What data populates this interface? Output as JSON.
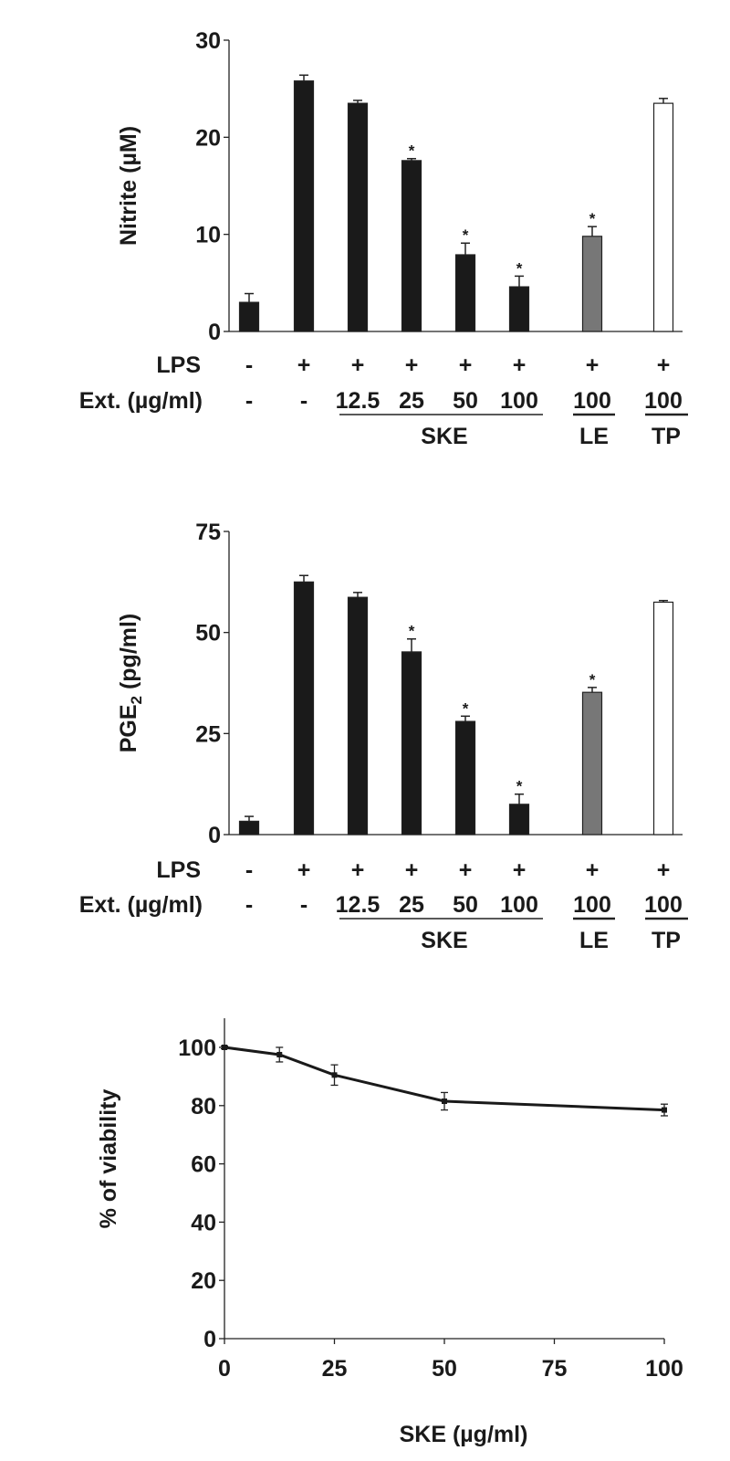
{
  "colors": {
    "black_bar": "#1a1a1a",
    "le_bar": "#777777",
    "tp_bar": "#ffffff",
    "axis": "#222222"
  },
  "row_labels": {
    "lps": "LPS",
    "ext": "Ext. (µg/ml)"
  },
  "groups": {
    "ske": "SKE",
    "le": "LE",
    "tp": "TP"
  },
  "chart_data": [
    {
      "type": "bar",
      "ylabel": "Nitrite (µM)",
      "ylim": [
        0,
        30
      ],
      "yticks": [
        "0",
        "10",
        "20",
        "30"
      ],
      "lps": [
        "-",
        "+",
        "+",
        "+",
        "+",
        "+",
        "+",
        "+"
      ],
      "ext": [
        "-",
        "-",
        "12.5",
        "25",
        "50",
        "100",
        "100",
        "100"
      ],
      "values": [
        3.0,
        25.8,
        23.5,
        17.6,
        7.9,
        4.6,
        9.8,
        23.5
      ],
      "errors": [
        0.9,
        0.6,
        0.3,
        0.2,
        1.2,
        1.1,
        1.0,
        0.5
      ],
      "significant": [
        false,
        false,
        false,
        true,
        true,
        true,
        true,
        false
      ],
      "fills": [
        "black",
        "black",
        "black",
        "black",
        "black",
        "black",
        "gray",
        "white"
      ],
      "marker": "*"
    },
    {
      "type": "bar",
      "ylabel": "PGE",
      "ylabel_sub": "2",
      "ylabel_unit": " (pg/ml)",
      "ylim": [
        0,
        75
      ],
      "yticks": [
        "0",
        "25",
        "50",
        "75"
      ],
      "lps": [
        "-",
        "+",
        "+",
        "+",
        "+",
        "+",
        "+",
        "+"
      ],
      "ext": [
        "-",
        "-",
        "12.5",
        "25",
        "50",
        "100",
        "100",
        "100"
      ],
      "values": [
        3.3,
        62.5,
        58.7,
        45.2,
        28.0,
        7.5,
        35.2,
        57.5
      ],
      "errors": [
        1.2,
        1.6,
        1.2,
        3.2,
        1.3,
        2.5,
        1.2,
        0.4
      ],
      "significant": [
        false,
        false,
        false,
        true,
        true,
        true,
        true,
        false
      ],
      "fills": [
        "black",
        "black",
        "black",
        "black",
        "black",
        "black",
        "gray",
        "white"
      ],
      "marker": "*"
    },
    {
      "type": "line",
      "ylabel": "% of viability",
      "xlabel": "SKE (µg/ml)",
      "ylim": [
        0,
        110
      ],
      "xlim": [
        0,
        100
      ],
      "yticks": [
        "0",
        "20",
        "40",
        "60",
        "80",
        "100"
      ],
      "xticks": [
        "0",
        "25",
        "50",
        "75",
        "100"
      ],
      "x": [
        0,
        12.5,
        25,
        50,
        100
      ],
      "y": [
        100,
        97.5,
        90.5,
        81.5,
        78.5
      ],
      "errors": [
        0.5,
        2.5,
        3.5,
        3.0,
        2.0
      ]
    }
  ]
}
